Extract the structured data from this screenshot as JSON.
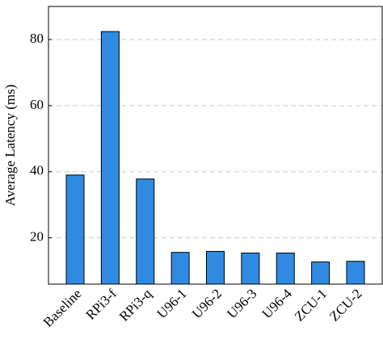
{
  "chart_data": {
    "type": "bar",
    "y_label": "Average Latency (ms)",
    "categories": [
      "Baseline",
      "RPi3-f",
      "RPi3-q",
      "U96-1",
      "U96-2",
      "U96-3",
      "U96-4",
      "ZCU-1",
      "ZCU-2"
    ],
    "values": [
      39,
      82.4,
      37.8,
      15.6,
      15.9,
      15.4,
      15.4,
      12.7,
      12.9
    ],
    "color": "#2f8be2",
    "ylim": [
      6,
      90
    ],
    "yticks": [
      20,
      40,
      60,
      80
    ],
    "grid": true
  }
}
